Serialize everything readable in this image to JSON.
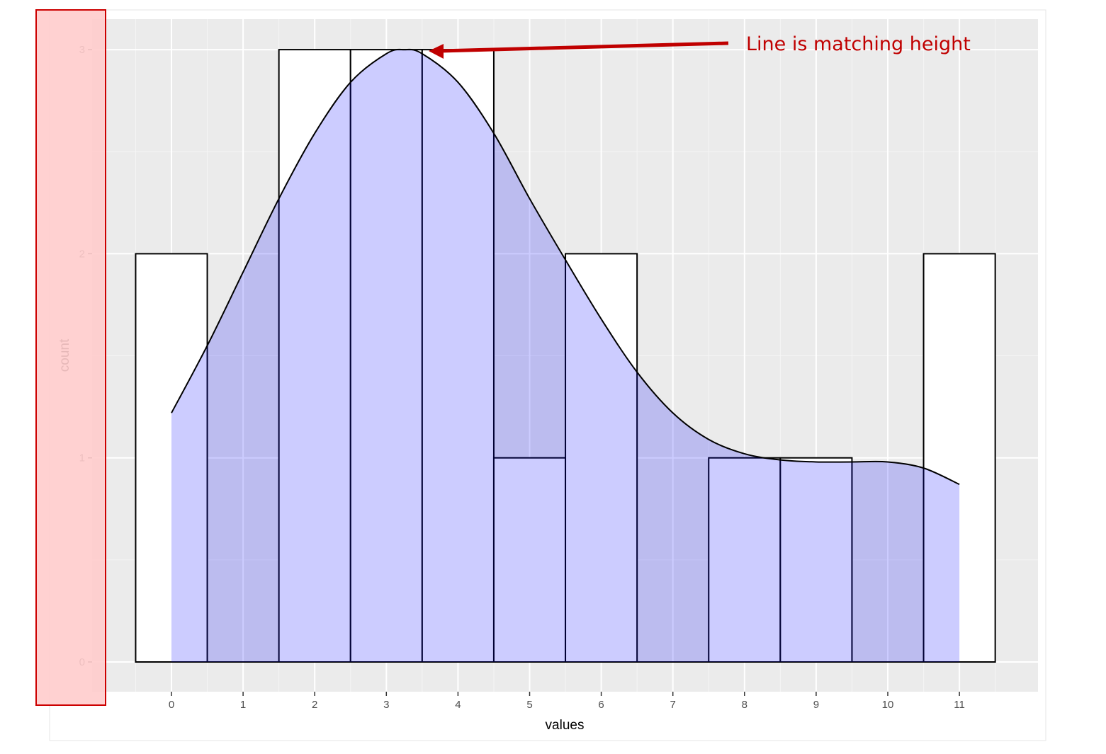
{
  "chart_data": {
    "type": "bar",
    "title": "",
    "xlabel": "values",
    "ylabel": "count",
    "xlim": [
      -0.5,
      11.5
    ],
    "ylim": [
      0,
      3
    ],
    "x_ticks": [
      "0",
      "1",
      "2",
      "3",
      "4",
      "5",
      "6",
      "7",
      "8",
      "9",
      "10",
      "11"
    ],
    "y_ticks": [
      "0",
      "1",
      "2",
      "3"
    ],
    "histogram": {
      "binwidth": 1,
      "bin_centers": [
        0,
        1,
        2,
        3,
        4,
        5,
        6,
        7,
        8,
        9,
        10,
        11
      ],
      "counts": [
        2,
        0,
        3,
        3,
        3,
        1,
        2,
        0,
        1,
        1,
        0,
        2
      ]
    },
    "density_curve": {
      "x": [
        0,
        0.5,
        1,
        1.5,
        2,
        2.5,
        3,
        3.25,
        3.5,
        4,
        4.5,
        5,
        5.5,
        6,
        6.5,
        7,
        7.5,
        8,
        8.5,
        9,
        9.5,
        10,
        10.5,
        11
      ],
      "y": [
        1.22,
        1.55,
        1.91,
        2.27,
        2.59,
        2.84,
        2.98,
        3.0,
        2.98,
        2.84,
        2.59,
        2.27,
        1.97,
        1.68,
        1.42,
        1.22,
        1.09,
        1.02,
        0.99,
        0.98,
        0.98,
        0.98,
        0.95,
        0.87
      ]
    },
    "grid": true,
    "legend": "none",
    "colors": {
      "panel_background": "#ebebeb",
      "grid_major": "#ffffff",
      "grid_minor": "#f5f5f5",
      "bar_fill": "#ffffff",
      "bar_outline": "#000000",
      "density_fill": "#0000ff",
      "density_alpha": 0.2,
      "highlight_box_fill": "#ffcccc",
      "highlight_box_border": "#cc0000",
      "annotation": "#c00000"
    },
    "annotation": {
      "text": "Line is matching height",
      "points_to": [
        3.5,
        3.0
      ]
    }
  }
}
